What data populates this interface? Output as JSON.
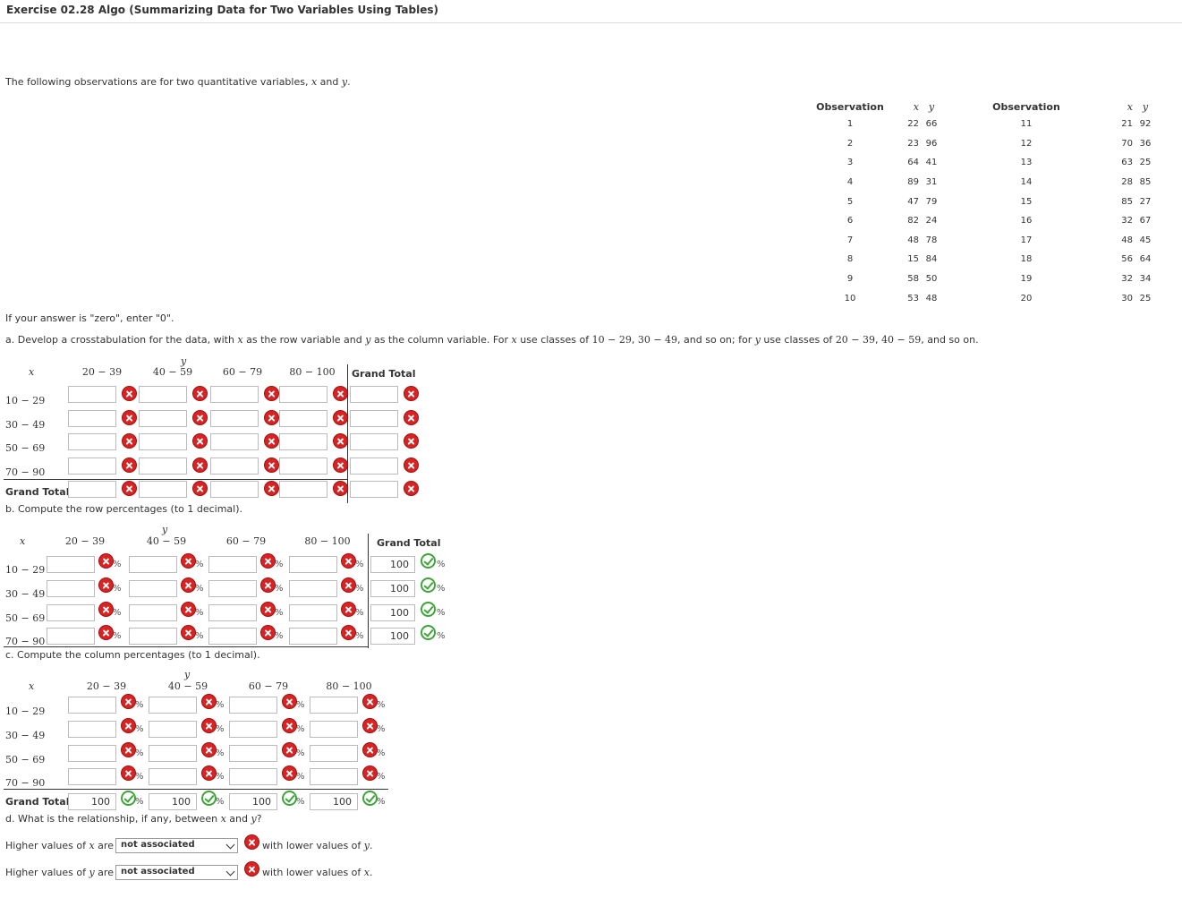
{
  "title": "Exercise 02.28 Algo (Summarizing Data for Two Variables Using Tables)",
  "intro": {
    "before": "The following observations are for two quantitative variables, ",
    "x": "x",
    "and": " and ",
    "y": "y",
    "end": "."
  },
  "observations": {
    "header": {
      "obs": "Observation",
      "x": "x",
      "y": "y"
    },
    "left": [
      {
        "obs": "1",
        "x": "22",
        "y": "66"
      },
      {
        "obs": "2",
        "x": "23",
        "y": "96"
      },
      {
        "obs": "3",
        "x": "64",
        "y": "41"
      },
      {
        "obs": "4",
        "x": "89",
        "y": "31"
      },
      {
        "obs": "5",
        "x": "47",
        "y": "79"
      },
      {
        "obs": "6",
        "x": "82",
        "y": "24"
      },
      {
        "obs": "7",
        "x": "48",
        "y": "78"
      },
      {
        "obs": "8",
        "x": "15",
        "y": "84"
      },
      {
        "obs": "9",
        "x": "58",
        "y": "50"
      },
      {
        "obs": "10",
        "x": "53",
        "y": "48"
      }
    ],
    "right": [
      {
        "obs": "11",
        "x": "21",
        "y": "92"
      },
      {
        "obs": "12",
        "x": "70",
        "y": "36"
      },
      {
        "obs": "13",
        "x": "63",
        "y": "25"
      },
      {
        "obs": "14",
        "x": "28",
        "y": "85"
      },
      {
        "obs": "15",
        "x": "85",
        "y": "27"
      },
      {
        "obs": "16",
        "x": "32",
        "y": "67"
      },
      {
        "obs": "17",
        "x": "48",
        "y": "45"
      },
      {
        "obs": "18",
        "x": "56",
        "y": "64"
      },
      {
        "obs": "19",
        "x": "32",
        "y": "34"
      },
      {
        "obs": "20",
        "x": "30",
        "y": "25"
      }
    ]
  },
  "zero_note": "If your answer is \"zero\", enter \"0\".",
  "part_a": {
    "text": {
      "p1": "a. Develop a crosstabulation for the data, with ",
      "x": "x",
      "p2": " as the row variable and ",
      "y": "y",
      "p3": " as the column variable. For ",
      "x2": "x",
      "p4": " use classes of ",
      "c1": "10 − 29",
      "sep1": ", ",
      "c2": "30 − 49",
      "p5": ", and so on; for ",
      "y2": "y",
      "p6": " use classes of ",
      "c3": "20 − 39",
      "sep2": ", ",
      "c4": "40 − 59",
      "p7": ", and so on."
    },
    "x_label": "x",
    "y_label": "y",
    "columns": [
      "20 − 39",
      "40 − 59",
      "60 − 79",
      "80 − 100"
    ],
    "grand_total_label": "Grand Total",
    "rows": [
      "10 − 29",
      "30 − 49",
      "50 − 69",
      "70 − 90"
    ],
    "row_total_label": "Grand Total"
  },
  "part_b": {
    "title": "b. Compute the row percentages (to 1 decimal).",
    "x_label": "x",
    "y_label": "y",
    "columns": [
      "20 − 39",
      "40 − 59",
      "60 − 79",
      "80 − 100"
    ],
    "grand_total_label": "Grand Total",
    "rows": [
      "10 − 29",
      "30 − 49",
      "50 − 69",
      "70 − 90"
    ],
    "totals": [
      "100",
      "100",
      "100",
      "100"
    ],
    "pct": "%"
  },
  "part_c": {
    "title": "c. Compute the column percentages (to 1 decimal).",
    "x_label": "x",
    "y_label": "y",
    "columns": [
      "20 − 39",
      "40 − 59",
      "60 − 79",
      "80 − 100"
    ],
    "rows": [
      "10 − 29",
      "30 − 49",
      "50 − 69",
      "70 − 90"
    ],
    "grand_total_label": "Grand Total",
    "totals": [
      "100",
      "100",
      "100",
      "100"
    ],
    "pct": "%"
  },
  "part_d": {
    "title": {
      "p1": "d. What is the relationship, if any, between ",
      "x": "x",
      "and": " and ",
      "y": "y",
      "q": "?"
    },
    "line1": {
      "pre": "Higher values of ",
      "var": "x",
      "are": " are",
      "select": "not associated",
      "post": "with lower values of ",
      "var2": "y",
      "end": "."
    },
    "line2": {
      "pre": "Higher values of ",
      "var": "y",
      "are": " are",
      "select": "not associated",
      "post": "with lower values of ",
      "var2": "x",
      "end": "."
    }
  },
  "colors": {
    "wrong": "#d92323",
    "correct": "#3fa53a"
  }
}
